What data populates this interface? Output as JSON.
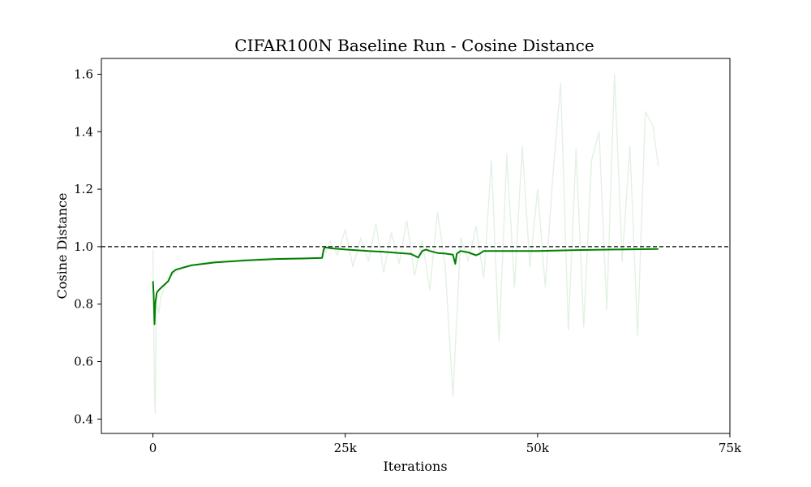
{
  "chart_data": {
    "type": "line",
    "title": "CIFAR100N Baseline Run - Cosine Distance",
    "xlabel": "Iterations",
    "ylabel": "Cosine Distance",
    "xlim": [
      -6700,
      75000
    ],
    "ylim": [
      0.35,
      1.655
    ],
    "x_ticks": [
      {
        "value": 0,
        "label": "0"
      },
      {
        "value": 25000,
        "label": "25k"
      },
      {
        "value": 50000,
        "label": "50k"
      },
      {
        "value": 75000,
        "label": "75k"
      }
    ],
    "y_ticks": [
      {
        "value": 0.4,
        "label": "0.4"
      },
      {
        "value": 0.6,
        "label": "0.6"
      },
      {
        "value": 0.8,
        "label": "0.8"
      },
      {
        "value": 1.0,
        "label": "1.0"
      },
      {
        "value": 1.2,
        "label": "1.2"
      },
      {
        "value": 1.4,
        "label": "1.4"
      },
      {
        "value": 1.6,
        "label": "1.6"
      }
    ],
    "reference_line": {
      "y": 1.0,
      "style": "dashed",
      "color": "#000000"
    },
    "series": [
      {
        "role": "raw",
        "color": "#e3f1e3",
        "x": [
          0,
          200,
          300,
          400,
          500,
          800,
          1000,
          1500,
          2000,
          3000,
          4000,
          6000,
          8000,
          10000,
          15000,
          20000,
          22000,
          22200,
          22500,
          23000,
          24000,
          25000,
          26000,
          27000,
          28000,
          29000,
          30000,
          31000,
          32000,
          33000,
          34000,
          35000,
          36000,
          37000,
          38000,
          39000,
          40000,
          41000,
          42000,
          43000,
          44000,
          45000,
          46000,
          47000,
          48000,
          49000,
          50000,
          51000,
          52000,
          53000,
          54000,
          55000,
          56000,
          57000,
          58000,
          59000,
          60000,
          61000,
          62000,
          63000,
          64000,
          65000,
          65700
        ],
        "y": [
          0.99,
          0.48,
          0.42,
          0.72,
          0.8,
          0.77,
          0.82,
          0.86,
          0.89,
          0.91,
          0.93,
          0.94,
          0.95,
          0.95,
          0.96,
          0.96,
          0.96,
          1.0,
          0.98,
          1.02,
          0.97,
          1.06,
          0.93,
          1.03,
          0.95,
          1.08,
          0.91,
          1.05,
          0.94,
          1.09,
          0.9,
          1.02,
          0.85,
          1.12,
          0.93,
          0.48,
          1.03,
          0.95,
          1.07,
          0.89,
          1.3,
          0.67,
          1.32,
          0.86,
          1.35,
          0.93,
          1.2,
          0.86,
          1.25,
          1.57,
          0.71,
          1.34,
          0.72,
          1.3,
          1.4,
          0.78,
          1.6,
          0.95,
          1.35,
          0.69,
          1.47,
          1.42,
          1.28
        ]
      },
      {
        "role": "smoothed",
        "color": "#008000",
        "x": [
          0,
          100,
          200,
          300,
          500,
          800,
          1200,
          2000,
          2500,
          3000,
          5000,
          8000,
          12000,
          16000,
          20000,
          22000,
          22200,
          22400,
          23000,
          25000,
          28000,
          30000,
          32000,
          33500,
          34500,
          35000,
          35500,
          36000,
          37000,
          38000,
          39000,
          39300,
          39500,
          40000,
          41000,
          42000,
          42500,
          43000,
          45000,
          50000,
          55000,
          60000,
          65700
        ],
        "y": [
          0.88,
          0.83,
          0.73,
          0.8,
          0.84,
          0.85,
          0.86,
          0.88,
          0.91,
          0.92,
          0.935,
          0.945,
          0.952,
          0.957,
          0.959,
          0.961,
          0.99,
          0.998,
          0.995,
          0.99,
          0.985,
          0.982,
          0.978,
          0.975,
          0.962,
          0.985,
          0.99,
          0.985,
          0.978,
          0.976,
          0.972,
          0.94,
          0.975,
          0.985,
          0.98,
          0.97,
          0.976,
          0.985,
          0.985,
          0.985,
          0.988,
          0.99,
          0.992
        ]
      }
    ],
    "grid": false,
    "legend": "none"
  }
}
